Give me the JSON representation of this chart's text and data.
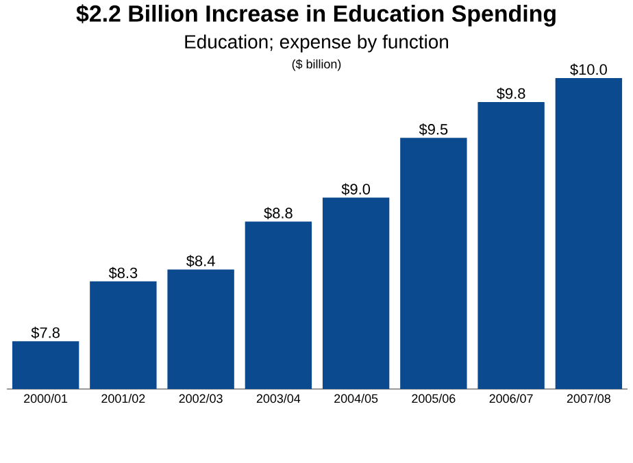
{
  "chart_data": {
    "type": "bar",
    "title": "$2.2 Billion Increase in Education Spending",
    "subtitle": "Education; expense by function",
    "annotations": [
      "($ billion)"
    ],
    "categories": [
      "2000/01",
      "2001/02",
      "2002/03",
      "2003/04",
      "2004/05",
      "2005/06",
      "2006/07",
      "2007/08"
    ],
    "values": [
      7.8,
      8.3,
      8.4,
      8.8,
      9.0,
      9.5,
      9.8,
      10.0
    ],
    "value_labels": [
      "$7.8",
      "$8.3",
      "$8.4",
      "$8.8",
      "$9.0",
      "$9.5",
      "$9.8",
      "$10.0"
    ],
    "color": "#0b4a8f",
    "ylim": [
      7.4,
      10.0
    ]
  }
}
